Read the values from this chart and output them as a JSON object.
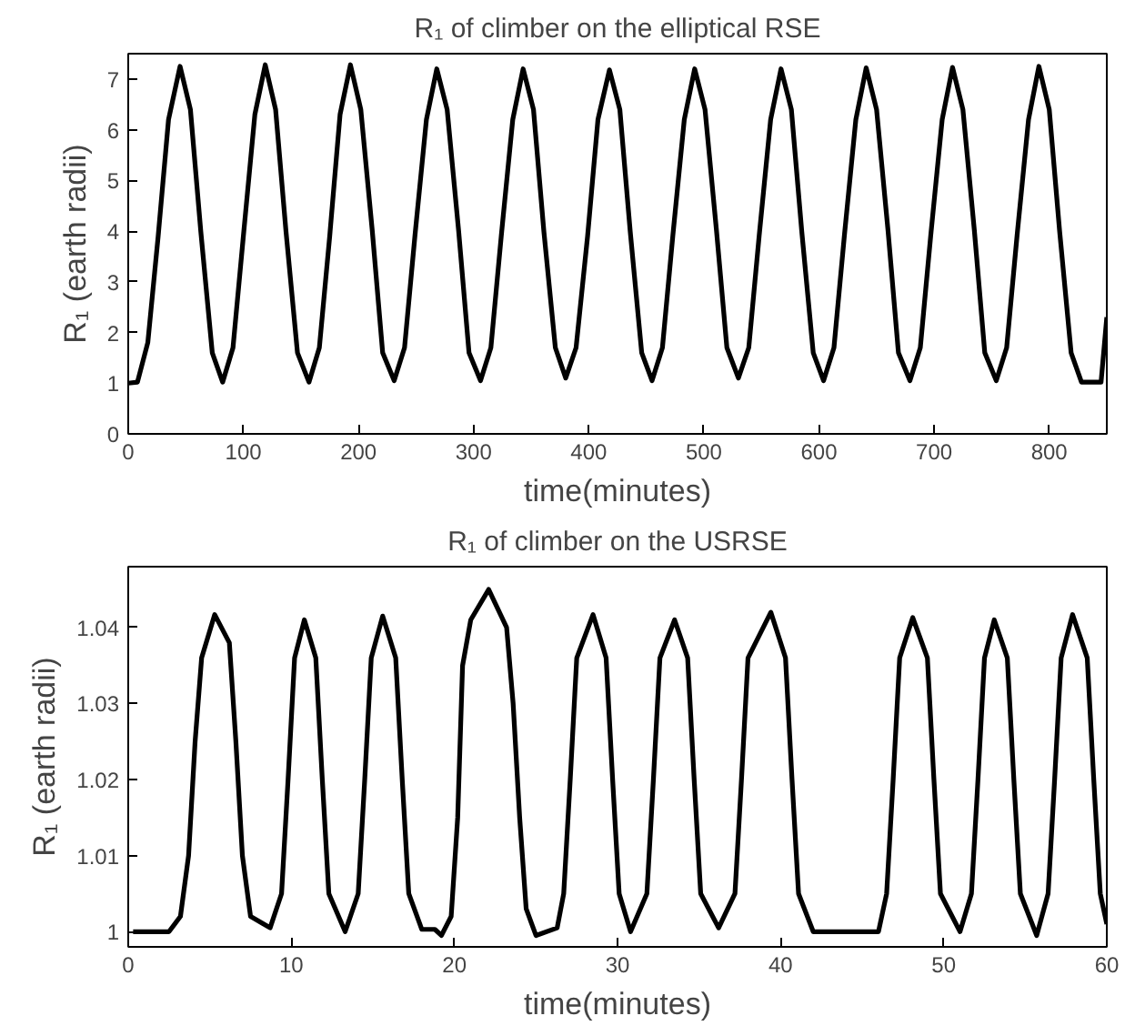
{
  "chart_data": [
    {
      "type": "line",
      "title": "R₁ of climber on the elliptical RSE",
      "xlabel": "time(minutes)",
      "ylabel": "R₁ (earth radii)",
      "xlim": [
        0,
        850
      ],
      "ylim": [
        0,
        7.5
      ],
      "xticks": [
        0,
        100,
        200,
        300,
        400,
        500,
        600,
        700,
        800
      ],
      "yticks": [
        0,
        1,
        2,
        3,
        4,
        5,
        6,
        7
      ],
      "grid": false,
      "series": [
        {
          "color": "#000000",
          "x": [
            0,
            8,
            17,
            26,
            35,
            45,
            54,
            63,
            73,
            82,
            91,
            100,
            110,
            119,
            128,
            137,
            147,
            157,
            166,
            175,
            184,
            193,
            202,
            212,
            221,
            231,
            240,
            249,
            259,
            268,
            277,
            287,
            296,
            306,
            315,
            324,
            334,
            343,
            352,
            361,
            371,
            380,
            389,
            399,
            408,
            418,
            427,
            436,
            446,
            455,
            464,
            473,
            483,
            492,
            501,
            511,
            520,
            530,
            539,
            548,
            558,
            567,
            576,
            585,
            595,
            604,
            613,
            622,
            632,
            641,
            650,
            660,
            669,
            679,
            688,
            697,
            707,
            716,
            725,
            735,
            744,
            754,
            763,
            772,
            782,
            791,
            800,
            809,
            819,
            828,
            845,
            850
          ],
          "values": [
            1.0,
            1.02,
            1.8,
            3.9,
            6.2,
            7.25,
            6.4,
            4.0,
            1.6,
            1.02,
            1.7,
            3.9,
            6.3,
            7.28,
            6.4,
            4.0,
            1.6,
            1.02,
            1.7,
            3.9,
            6.3,
            7.28,
            6.4,
            4.0,
            1.6,
            1.05,
            1.7,
            3.9,
            6.2,
            7.2,
            6.4,
            4.0,
            1.6,
            1.05,
            1.7,
            3.9,
            6.2,
            7.2,
            6.4,
            4.0,
            1.7,
            1.1,
            1.7,
            3.9,
            6.2,
            7.18,
            6.4,
            4.0,
            1.6,
            1.05,
            1.7,
            3.9,
            6.2,
            7.2,
            6.4,
            4.0,
            1.7,
            1.1,
            1.7,
            3.9,
            6.2,
            7.2,
            6.4,
            4.0,
            1.6,
            1.05,
            1.7,
            3.9,
            6.2,
            7.22,
            6.4,
            4.0,
            1.6,
            1.05,
            1.7,
            3.9,
            6.2,
            7.23,
            6.4,
            4.0,
            1.6,
            1.05,
            1.7,
            3.9,
            6.2,
            7.25,
            6.4,
            4.0,
            1.6,
            1.02,
            1.02,
            2.3
          ]
        }
      ]
    },
    {
      "type": "line",
      "title": "R₁ of climber on the USRSE",
      "xlabel": "time(minutes)",
      "ylabel": "R₁ (earth radii)",
      "xlim": [
        0,
        60
      ],
      "ylim": [
        0.998,
        1.048
      ],
      "xticks": [
        0,
        10,
        20,
        30,
        40,
        50,
        60
      ],
      "yticks": [
        1,
        1.01,
        1.02,
        1.03,
        1.04
      ],
      "grid": false,
      "series": [
        {
          "color": "#000000",
          "x": [
            0.3,
            2.5,
            3.2,
            3.7,
            4.1,
            4.5,
            5.3,
            6.2,
            6.6,
            7.0,
            7.5,
            8.7,
            9.4,
            9.8,
            10.2,
            10.8,
            11.5,
            11.9,
            12.3,
            13.3,
            14.1,
            14.5,
            14.9,
            15.6,
            16.4,
            16.8,
            17.2,
            18.0,
            18.8,
            19.2,
            19.8,
            20.2,
            20.5,
            21.0,
            22.1,
            23.2,
            23.6,
            24.0,
            24.4,
            25.0,
            26.3,
            26.7,
            27.1,
            27.5,
            28.5,
            29.3,
            29.7,
            30.1,
            30.8,
            31.8,
            32.2,
            32.6,
            33.5,
            34.3,
            34.7,
            35.1,
            36.2,
            37.2,
            37.6,
            38.0,
            39.4,
            40.3,
            40.7,
            41.1,
            42.0,
            46.0,
            46.5,
            46.9,
            47.3,
            48.1,
            49.0,
            49.4,
            49.8,
            51.0,
            51.7,
            52.1,
            52.5,
            53.1,
            53.9,
            54.3,
            54.7,
            55.7,
            56.4,
            56.8,
            57.2,
            57.9,
            58.8,
            59.2,
            59.6,
            60
          ],
          "values": [
            1.0,
            1.0,
            1.002,
            1.01,
            1.025,
            1.036,
            1.0417,
            1.038,
            1.025,
            1.01,
            1.002,
            1.0005,
            1.005,
            1.02,
            1.036,
            1.041,
            1.036,
            1.02,
            1.005,
            1.0,
            1.005,
            1.02,
            1.036,
            1.0415,
            1.036,
            1.02,
            1.005,
            1.0003,
            1.0003,
            0.9995,
            1.002,
            1.015,
            1.035,
            1.041,
            1.045,
            1.04,
            1.03,
            1.015,
            1.003,
            0.9995,
            1.0005,
            1.005,
            1.02,
            1.036,
            1.0417,
            1.036,
            1.02,
            1.005,
            1.0,
            1.005,
            1.02,
            1.036,
            1.041,
            1.036,
            1.02,
            1.005,
            1.0005,
            1.005,
            1.02,
            1.036,
            1.042,
            1.036,
            1.02,
            1.005,
            1.0,
            1.0,
            1.005,
            1.02,
            1.036,
            1.0413,
            1.036,
            1.02,
            1.005,
            1.0,
            1.005,
            1.02,
            1.036,
            1.041,
            1.036,
            1.02,
            1.005,
            0.9995,
            1.005,
            1.02,
            1.036,
            1.0417,
            1.036,
            1.02,
            1.005,
            1.001
          ]
        }
      ]
    }
  ]
}
